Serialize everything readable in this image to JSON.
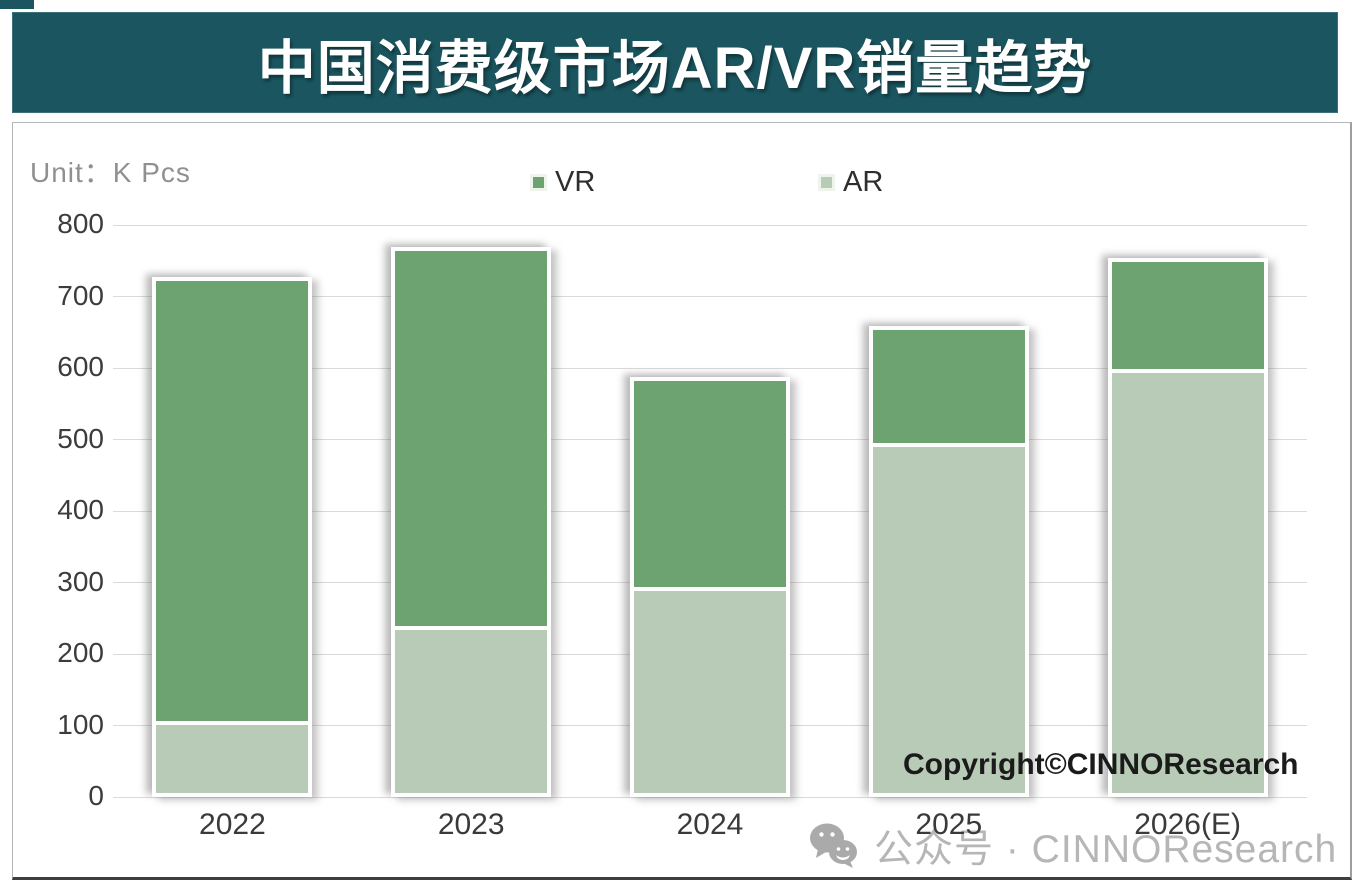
{
  "title": "中国消费级市场AR/VR销量趋势",
  "unit_label": "Unit：K Pcs",
  "copyright": "Copyright©CINNOResearch",
  "watermark": {
    "icon": "wechat-icon",
    "text": "公众号 · CINNOResearch"
  },
  "colors": {
    "banner": "#1b5660",
    "vr": "#6da271",
    "ar": "#b8cbb6",
    "gridline": "#d9dad9",
    "axis_text": "#3c3c3c",
    "watermark_gray": "#b5b6b5"
  },
  "chart_data": {
    "type": "bar",
    "stacked": true,
    "title": "中国消费级市场AR/VR销量趋势",
    "unit": "K Pcs",
    "categories": [
      "2022",
      "2023",
      "2024",
      "2025",
      "2026(E)"
    ],
    "series": [
      {
        "name": "VR",
        "color": "#6da271",
        "values": [
          615,
          525,
          287,
          158,
          150
        ]
      },
      {
        "name": "AR",
        "color": "#b8cbb6",
        "values": [
          95,
          228,
          283,
          484,
          587
        ]
      }
    ],
    "totals": [
      710,
      753,
      570,
      642,
      737
    ],
    "stack_order_bottom_to_top": [
      "AR",
      "VR"
    ],
    "ylim": [
      0,
      800
    ],
    "yticks": [
      0,
      100,
      200,
      300,
      400,
      500,
      600,
      700,
      800
    ],
    "grid": true,
    "legend_position": "top"
  }
}
